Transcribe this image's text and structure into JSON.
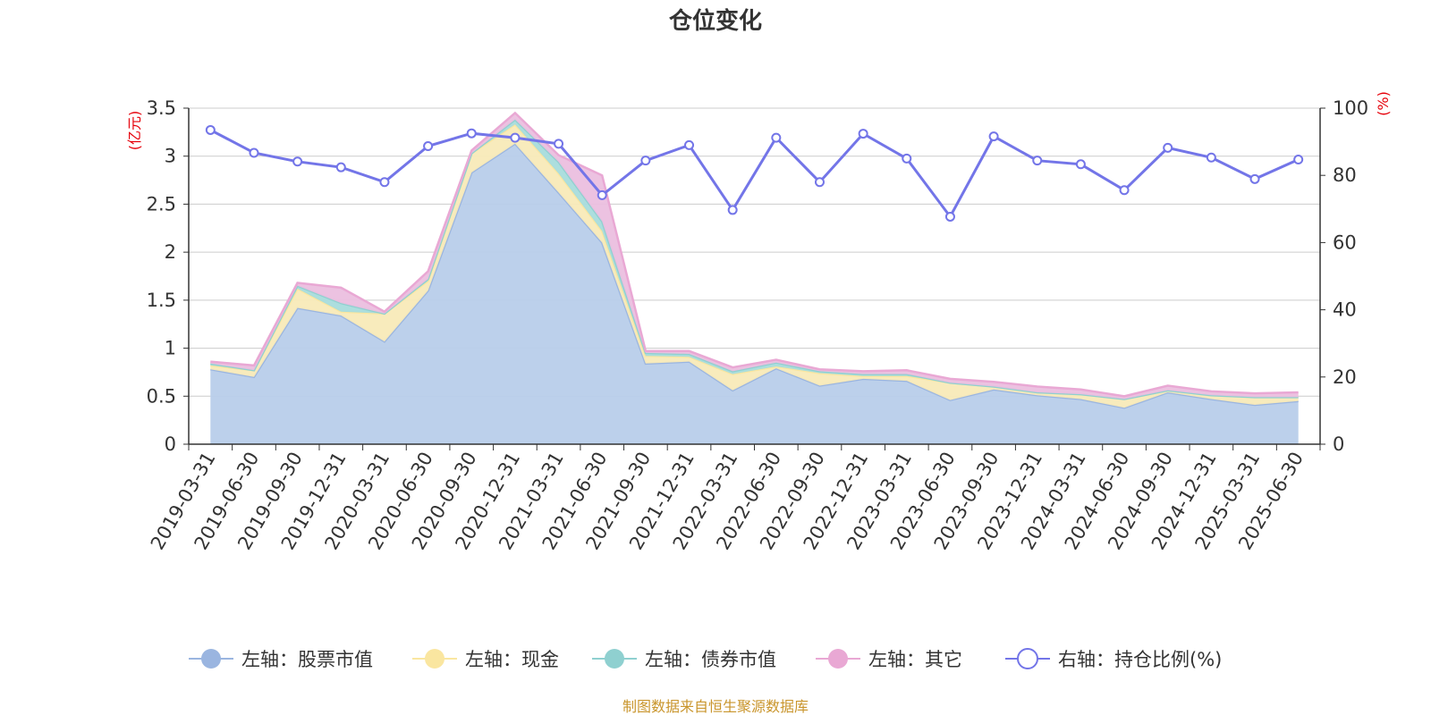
{
  "chart_data": {
    "type": "area",
    "title": "仓位变化",
    "left_axis_unit": "(亿元)",
    "right_axis_unit": "(%)",
    "left_ylim": [
      0,
      3.5
    ],
    "left_yticks": [
      "0",
      "0.5",
      "1",
      "1.5",
      "2",
      "2.5",
      "3",
      "3.5"
    ],
    "right_ylim": [
      0,
      100
    ],
    "right_yticks": [
      "0",
      "20",
      "40",
      "60",
      "80",
      "100"
    ],
    "categories": [
      "2019-03-31",
      "2019-06-30",
      "2019-09-30",
      "2019-12-31",
      "2020-03-31",
      "2020-06-30",
      "2020-09-30",
      "2020-12-31",
      "2021-03-31",
      "2021-06-30",
      "2021-09-30",
      "2021-12-31",
      "2022-03-31",
      "2022-06-30",
      "2022-09-30",
      "2022-12-31",
      "2023-03-31",
      "2023-06-30",
      "2023-09-30",
      "2023-12-31",
      "2024-03-31",
      "2024-06-30",
      "2024-09-30",
      "2024-12-31",
      "2025-03-31",
      "2025-06-30"
    ],
    "stacked": true,
    "grid": true,
    "legend_position": "bottom",
    "series": [
      {
        "name": "左轴：股票市值",
        "axis": "left",
        "kind": "area",
        "color": "#9ab5e0",
        "fill": "#b8cdea",
        "values": [
          0.78,
          0.7,
          1.42,
          1.34,
          1.07,
          1.6,
          2.83,
          3.13,
          2.62,
          2.1,
          0.84,
          0.86,
          0.56,
          0.79,
          0.61,
          0.68,
          0.66,
          0.46,
          0.57,
          0.51,
          0.47,
          0.38,
          0.54,
          0.47,
          0.41,
          0.45
        ]
      },
      {
        "name": "左轴：现金",
        "axis": "left",
        "kind": "area",
        "color": "#fae6a0",
        "fill": "#f8eab8",
        "values": [
          0.04,
          0.07,
          0.2,
          0.04,
          0.29,
          0.1,
          0.2,
          0.2,
          0.2,
          0.12,
          0.08,
          0.05,
          0.17,
          0.02,
          0.13,
          0.03,
          0.05,
          0.18,
          0.03,
          0.03,
          0.05,
          0.09,
          0.02,
          0.04,
          0.08,
          0.04
        ]
      },
      {
        "name": "左轴：债券市值",
        "axis": "left",
        "kind": "area",
        "color": "#8fd0d0",
        "fill": "#a8dcdc",
        "values": [
          0.02,
          0.0,
          0.03,
          0.09,
          0.0,
          0.02,
          0.0,
          0.05,
          0.12,
          0.1,
          0.03,
          0.03,
          0.03,
          0.04,
          0.02,
          0.02,
          0.02,
          0.0,
          0.0,
          0.0,
          0.0,
          0.0,
          0.0,
          0.0,
          0.0,
          0.0
        ]
      },
      {
        "name": "左轴：其它",
        "axis": "left",
        "kind": "area",
        "color": "#e9a8d4",
        "fill": "#ebbfdf",
        "values": [
          0.02,
          0.05,
          0.03,
          0.16,
          0.02,
          0.08,
          0.03,
          0.07,
          0.07,
          0.48,
          0.02,
          0.03,
          0.04,
          0.03,
          0.02,
          0.03,
          0.04,
          0.04,
          0.05,
          0.06,
          0.05,
          0.03,
          0.05,
          0.04,
          0.04,
          0.05
        ]
      },
      {
        "name": "右轴：持仓比例(%)",
        "axis": "right",
        "kind": "line",
        "color": "#7375e8",
        "values": [
          93.5,
          86.7,
          84.1,
          82.4,
          78.0,
          88.7,
          92.5,
          91.2,
          89.4,
          74.1,
          84.4,
          89.0,
          69.7,
          91.2,
          78.0,
          92.4,
          85.0,
          67.7,
          91.6,
          84.4,
          83.3,
          75.6,
          88.2,
          85.3,
          78.9,
          84.7
        ]
      }
    ]
  },
  "footer": {
    "source": "制图数据来自恒生聚源数据库"
  }
}
